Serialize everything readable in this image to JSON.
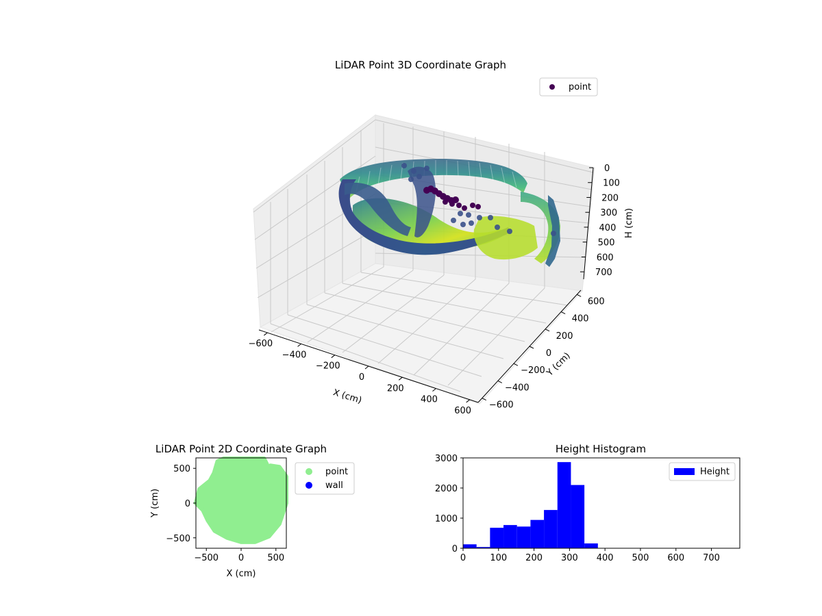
{
  "chart_data": [
    {
      "type": "scatter",
      "projection": "3d",
      "title": "LiDAR Point 3D Coordinate Graph",
      "xlabel": "X (cm)",
      "ylabel": "Y (cm)",
      "zlabel": "H (cm)",
      "xlim": [
        -650,
        650
      ],
      "ylim": [
        -650,
        650
      ],
      "zlim": [
        0,
        750
      ],
      "z_inverted": true,
      "xticks": [
        "−600",
        "−400",
        "−200",
        "0",
        "200",
        "400",
        "600"
      ],
      "yticks": [
        "−600",
        "−400",
        "−200",
        "0",
        "200",
        "400",
        "600"
      ],
      "zticks": [
        "0",
        "100",
        "200",
        "300",
        "400",
        "500",
        "600",
        "700"
      ],
      "legend": [
        "point"
      ],
      "legend_position": "upper-right",
      "colormap": "viridis",
      "grid": true,
      "series": [
        {
          "name": "point",
          "description_points": [
            {
              "x": -540,
              "y": 380,
              "h": 170
            },
            {
              "x": -300,
              "y": 560,
              "h": 170
            },
            {
              "x": 0,
              "y": 600,
              "h": 170
            },
            {
              "x": 300,
              "y": 560,
              "h": 170
            },
            {
              "x": 520,
              "y": 380,
              "h": 180
            },
            {
              "x": 600,
              "y": 100,
              "h": 280
            },
            {
              "x": 580,
              "y": -200,
              "h": 320
            },
            {
              "x": 450,
              "y": -420,
              "h": 330
            },
            {
              "x": 200,
              "y": -540,
              "h": 330
            },
            {
              "x": -100,
              "y": -560,
              "h": 320
            },
            {
              "x": -400,
              "y": -420,
              "h": 300
            },
            {
              "x": -560,
              "y": -150,
              "h": 280
            },
            {
              "x": -580,
              "y": 150,
              "h": 240
            },
            {
              "x": 0,
              "y": 0,
              "h": 330
            },
            {
              "x": 150,
              "y": 80,
              "h": 120
            },
            {
              "x": 250,
              "y": 0,
              "h": 150
            },
            {
              "x": 100,
              "y": 150,
              "h": 100
            },
            {
              "x": 200,
              "y": -300,
              "h": 330
            },
            {
              "x": -200,
              "y": -250,
              "h": 330
            }
          ]
        }
      ]
    },
    {
      "type": "scatter",
      "title": "LiDAR Point 2D Coordinate Graph",
      "xlabel": "X (cm)",
      "ylabel": "Y (cm)",
      "xlim": [
        -650,
        650
      ],
      "ylim": [
        -650,
        650
      ],
      "xticks": [
        "−500",
        "0",
        "500"
      ],
      "yticks": [
        "−500",
        "0",
        "500"
      ],
      "legend": [
        "point",
        "wall"
      ],
      "legend_position": "outside-right",
      "colors": {
        "point": "#90ee90",
        "wall": "#0000ff"
      },
      "outline_points": [
        [
          -340,
          600
        ],
        [
          -250,
          640
        ],
        [
          -50,
          640
        ],
        [
          150,
          640
        ],
        [
          330,
          640
        ],
        [
          370,
          560
        ],
        [
          290,
          340
        ],
        [
          420,
          540
        ],
        [
          550,
          520
        ],
        [
          650,
          380
        ],
        [
          650,
          0
        ],
        [
          550,
          -300
        ],
        [
          400,
          -480
        ],
        [
          200,
          -560
        ],
        [
          0,
          -560
        ],
        [
          -200,
          -500
        ],
        [
          -380,
          -400
        ],
        [
          -480,
          -250
        ],
        [
          -550,
          -100
        ],
        [
          -650,
          0
        ],
        [
          -600,
          200
        ],
        [
          -450,
          320
        ],
        [
          -390,
          430
        ]
      ]
    },
    {
      "type": "bar",
      "subtype": "histogram",
      "title": "Height Histogram",
      "xlabel": "",
      "ylabel": "",
      "xlim": [
        0,
        780
      ],
      "ylim": [
        0,
        3000
      ],
      "xticks": [
        "0",
        "100",
        "200",
        "300",
        "400",
        "500",
        "600",
        "700"
      ],
      "yticks": [
        "0",
        "1000",
        "2000",
        "3000"
      ],
      "legend": [
        "Height"
      ],
      "legend_position": "upper-right",
      "color": "#0000ff",
      "bin_edges": [
        0,
        38,
        76,
        114,
        152,
        190,
        228,
        266,
        304,
        342,
        380
      ],
      "values": [
        130,
        40,
        680,
        770,
        720,
        940,
        1270,
        2860,
        2100,
        160
      ]
    }
  ]
}
